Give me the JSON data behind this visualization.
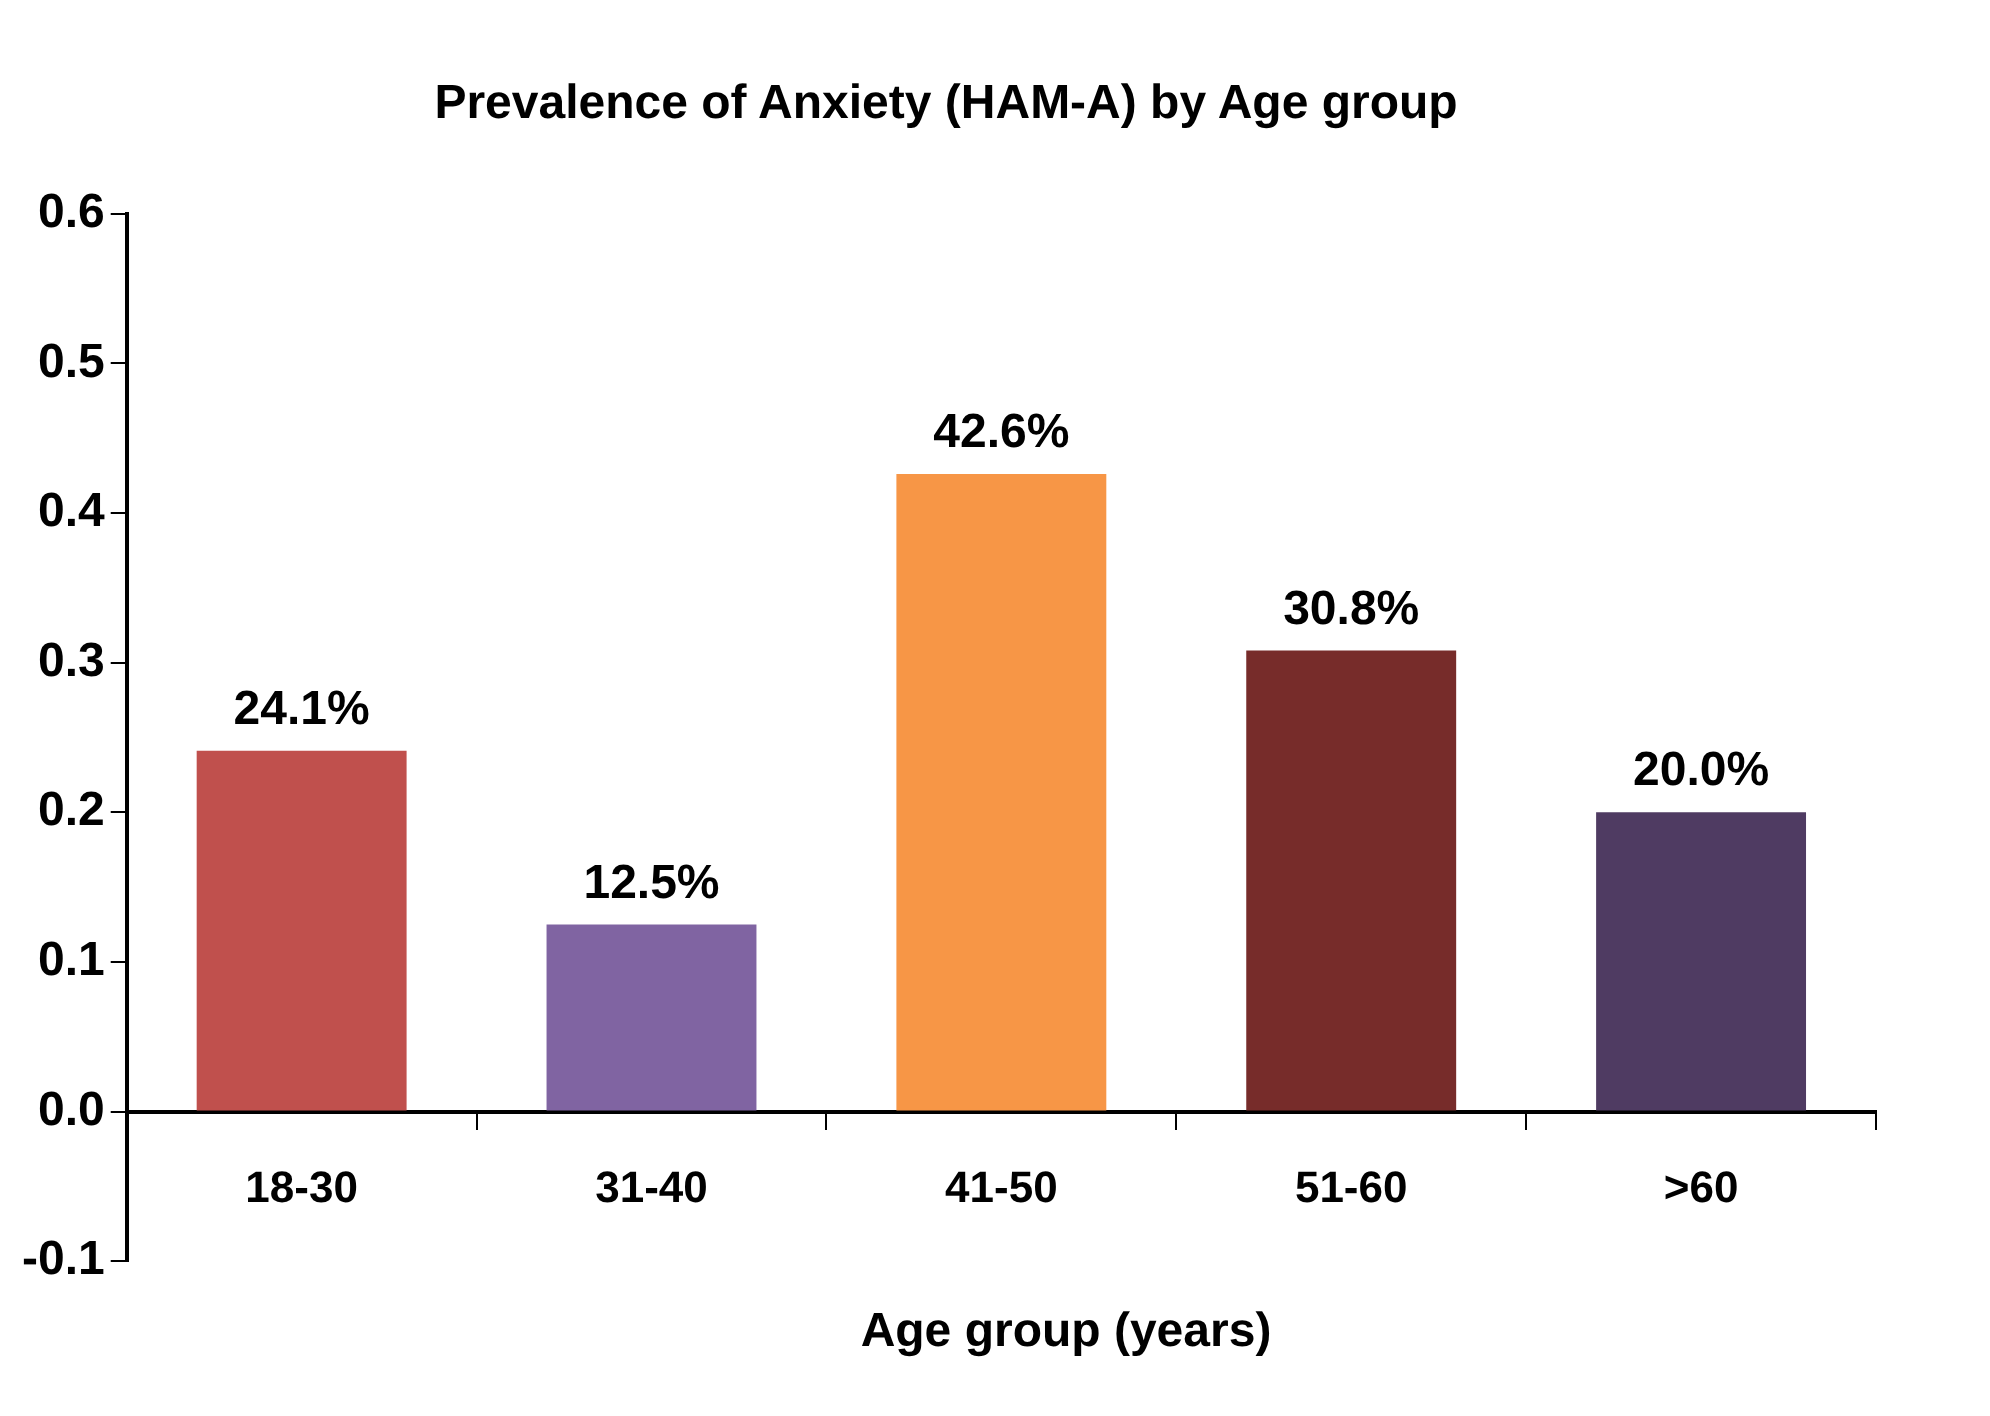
{
  "chart_data": {
    "type": "bar",
    "title": "Prevalence of Anxiety (HAM-A) by Age group",
    "xlabel": "Age group (years)",
    "categories": [
      "18-30",
      "31-40",
      "41-50",
      "51-60",
      ">60"
    ],
    "values": [
      0.241,
      0.125,
      0.426,
      0.308,
      0.2
    ],
    "value_labels": [
      "24.1%",
      "12.5%",
      "42.6%",
      "30.8%",
      "20.0%"
    ],
    "colors": [
      "#c0504d",
      "#8064a2",
      "#f79646",
      "#772c2a",
      "#4f3b62"
    ],
    "ylim": [
      -0.1,
      0.6
    ],
    "yticks": [
      -0.1,
      {
        "value": 0,
        "label": "0.0"
      },
      0.1,
      0.2,
      0.3,
      0.4,
      0.5,
      0.6
    ],
    "grid": false,
    "legend": false
  }
}
